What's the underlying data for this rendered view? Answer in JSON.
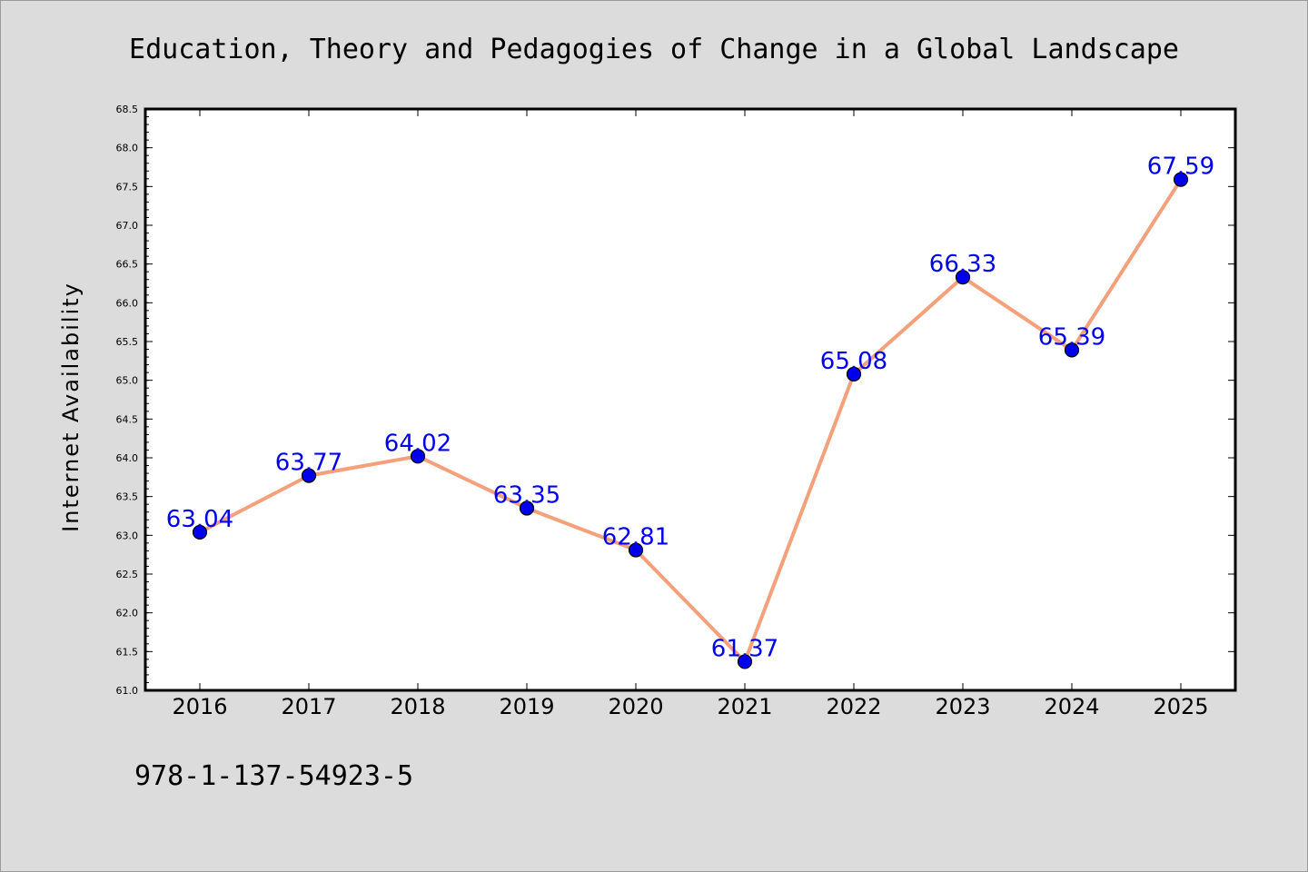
{
  "chart_data": {
    "type": "line",
    "title": "Education, Theory and Pedagogies of Change in a Global Landscape",
    "xlabel": "",
    "ylabel": "Internet Availability",
    "categories": [
      "2016",
      "2017",
      "2018",
      "2019",
      "2020",
      "2021",
      "2022",
      "2023",
      "2024",
      "2025"
    ],
    "values": [
      63.04,
      63.77,
      64.02,
      63.35,
      62.81,
      61.37,
      65.08,
      66.33,
      65.39,
      67.59
    ],
    "data_labels": [
      "63.04",
      "63.77",
      "64.02",
      "63.35",
      "62.81",
      "61.37",
      "65.08",
      "66.33",
      "65.39",
      "67.59"
    ],
    "ylim": [
      61.0,
      68.5
    ],
    "yticks": [
      "61.0",
      "61.5",
      "62.0",
      "62.5",
      "63.0",
      "63.5",
      "64.0",
      "64.5",
      "65.0",
      "65.5",
      "66.0",
      "66.5",
      "67.0",
      "67.5",
      "68.0",
      "68.5"
    ],
    "grid": false,
    "legend": "none"
  },
  "footer_text": "978-1-137-54923-5",
  "colors": {
    "background": "#dcdcdc",
    "plot_background": "#ffffff",
    "line": "#f4a07a",
    "marker": "#0000ee",
    "data_label": "#0000ee",
    "axis": "#000000"
  }
}
